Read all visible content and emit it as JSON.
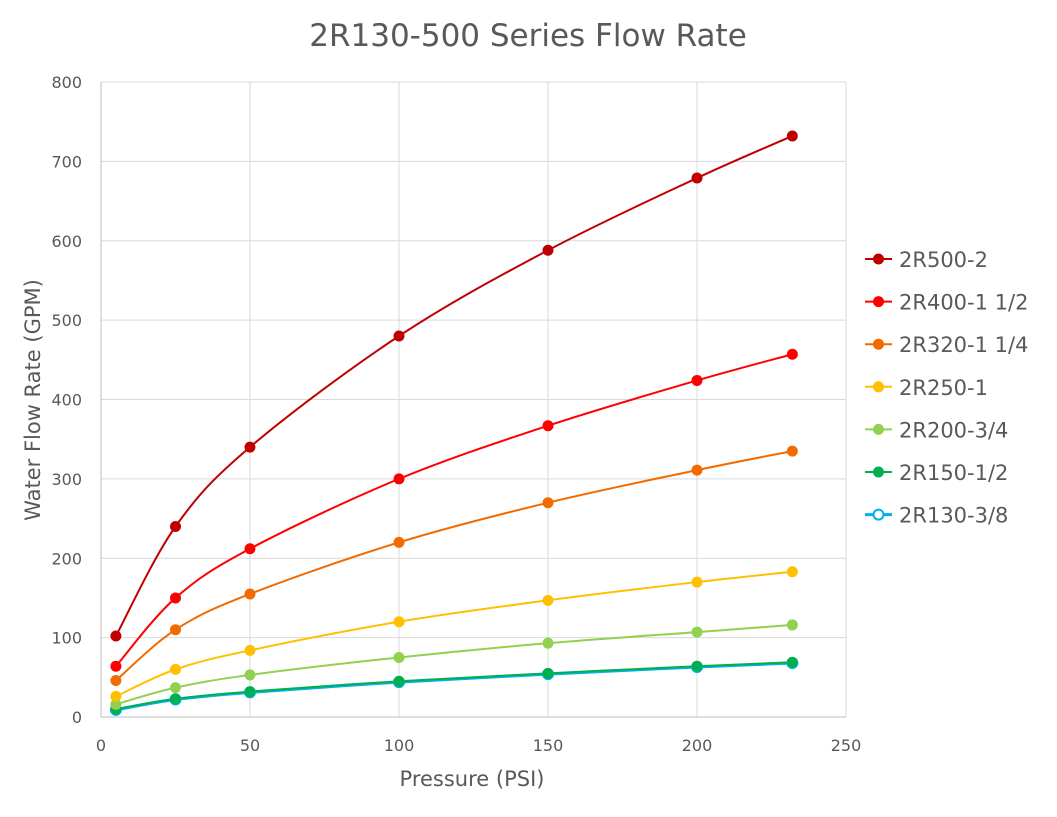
{
  "chart_data": {
    "type": "line",
    "title": "2R130-500 Series Flow Rate",
    "xlabel": "Pressure (PSI)",
    "ylabel": "Water Flow Rate (GPM)",
    "xlim": [
      0,
      250
    ],
    "ylim": [
      0,
      800
    ],
    "x_ticks": [
      0,
      50,
      100,
      150,
      200,
      250
    ],
    "y_ticks": [
      0,
      100,
      200,
      300,
      400,
      500,
      600,
      700,
      800
    ],
    "grid": true,
    "legend_position": "right",
    "x": [
      5,
      25,
      50,
      100,
      150,
      200,
      232
    ],
    "series": [
      {
        "name": "2R500-2",
        "color": "#c00000",
        "hollow": false,
        "values": [
          102,
          240,
          340,
          480,
          588,
          679,
          732
        ]
      },
      {
        "name": "2R400-1 1/2",
        "color": "#ff0000",
        "hollow": false,
        "values": [
          64,
          150,
          212,
          300,
          367,
          424,
          457
        ]
      },
      {
        "name": "2R320-1 1/4",
        "color": "#f26b00",
        "hollow": false,
        "values": [
          46,
          110,
          155,
          220,
          270,
          311,
          335
        ]
      },
      {
        "name": "2R250-1",
        "color": "#ffc000",
        "hollow": false,
        "values": [
          26,
          60,
          84,
          120,
          147,
          170,
          183
        ]
      },
      {
        "name": "2R200-3/4",
        "color": "#92d050",
        "hollow": false,
        "values": [
          16,
          37,
          53,
          75,
          93,
          107,
          116
        ]
      },
      {
        "name": "2R150-1/2",
        "color": "#00b050",
        "hollow": false,
        "values": [
          10,
          23,
          32,
          45,
          55,
          64,
          69
        ]
      },
      {
        "name": "2R130-3/8",
        "color": "#00b0f0",
        "hollow": true,
        "values": [
          9,
          22,
          31,
          44,
          54,
          63,
          68
        ]
      }
    ]
  }
}
